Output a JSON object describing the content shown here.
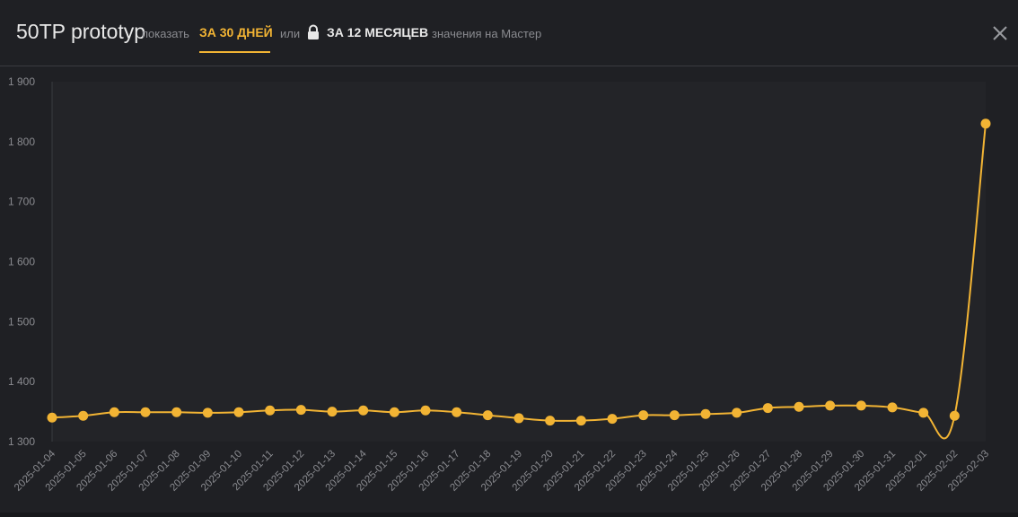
{
  "header": {
    "title": "50TP prototyp",
    "show_label": "показать",
    "tab_30_days": "ЗА 30 ДНЕЙ",
    "or_label": "или",
    "tab_12_months": "ЗА 12 МЕСЯЦЕВ",
    "master_label": "значения на Мастер",
    "icons": {
      "lock": "lock-icon",
      "close": "close-icon"
    }
  },
  "colors": {
    "background": "#1f2024",
    "accent": "#f2b434",
    "grid": "#2a2b30",
    "tick": "#8a8b90"
  },
  "chart_data": {
    "type": "line",
    "title": "",
    "xlabel": "",
    "ylabel": "",
    "ylim": [
      1300,
      1900
    ],
    "yticks": [
      1300,
      1400,
      1500,
      1600,
      1700,
      1800,
      1900
    ],
    "ytick_labels": [
      "1 300",
      "1 400",
      "1 500",
      "1 600",
      "1 700",
      "1 800",
      "1 900"
    ],
    "grid": false,
    "x": [
      "2025-01-04",
      "2025-01-05",
      "2025-01-06",
      "2025-01-07",
      "2025-01-08",
      "2025-01-09",
      "2025-01-10",
      "2025-01-11",
      "2025-01-12",
      "2025-01-13",
      "2025-01-14",
      "2025-01-15",
      "2025-01-16",
      "2025-01-17",
      "2025-01-18",
      "2025-01-19",
      "2025-01-20",
      "2025-01-21",
      "2025-01-22",
      "2025-01-23",
      "2025-01-24",
      "2025-01-25",
      "2025-01-26",
      "2025-01-27",
      "2025-01-28",
      "2025-01-29",
      "2025-01-30",
      "2025-01-31",
      "2025-02-01",
      "2025-02-02",
      "2025-02-03"
    ],
    "series": [
      {
        "values": [
          1340,
          1343,
          1349,
          1349,
          1349,
          1348,
          1349,
          1352,
          1353,
          1350,
          1352,
          1349,
          1352,
          1349,
          1344,
          1339,
          1335,
          1335,
          1338,
          1344,
          1344,
          1346,
          1348,
          1356,
          1358,
          1360,
          1360,
          1357,
          1348,
          1343,
          1830
        ]
      }
    ]
  }
}
